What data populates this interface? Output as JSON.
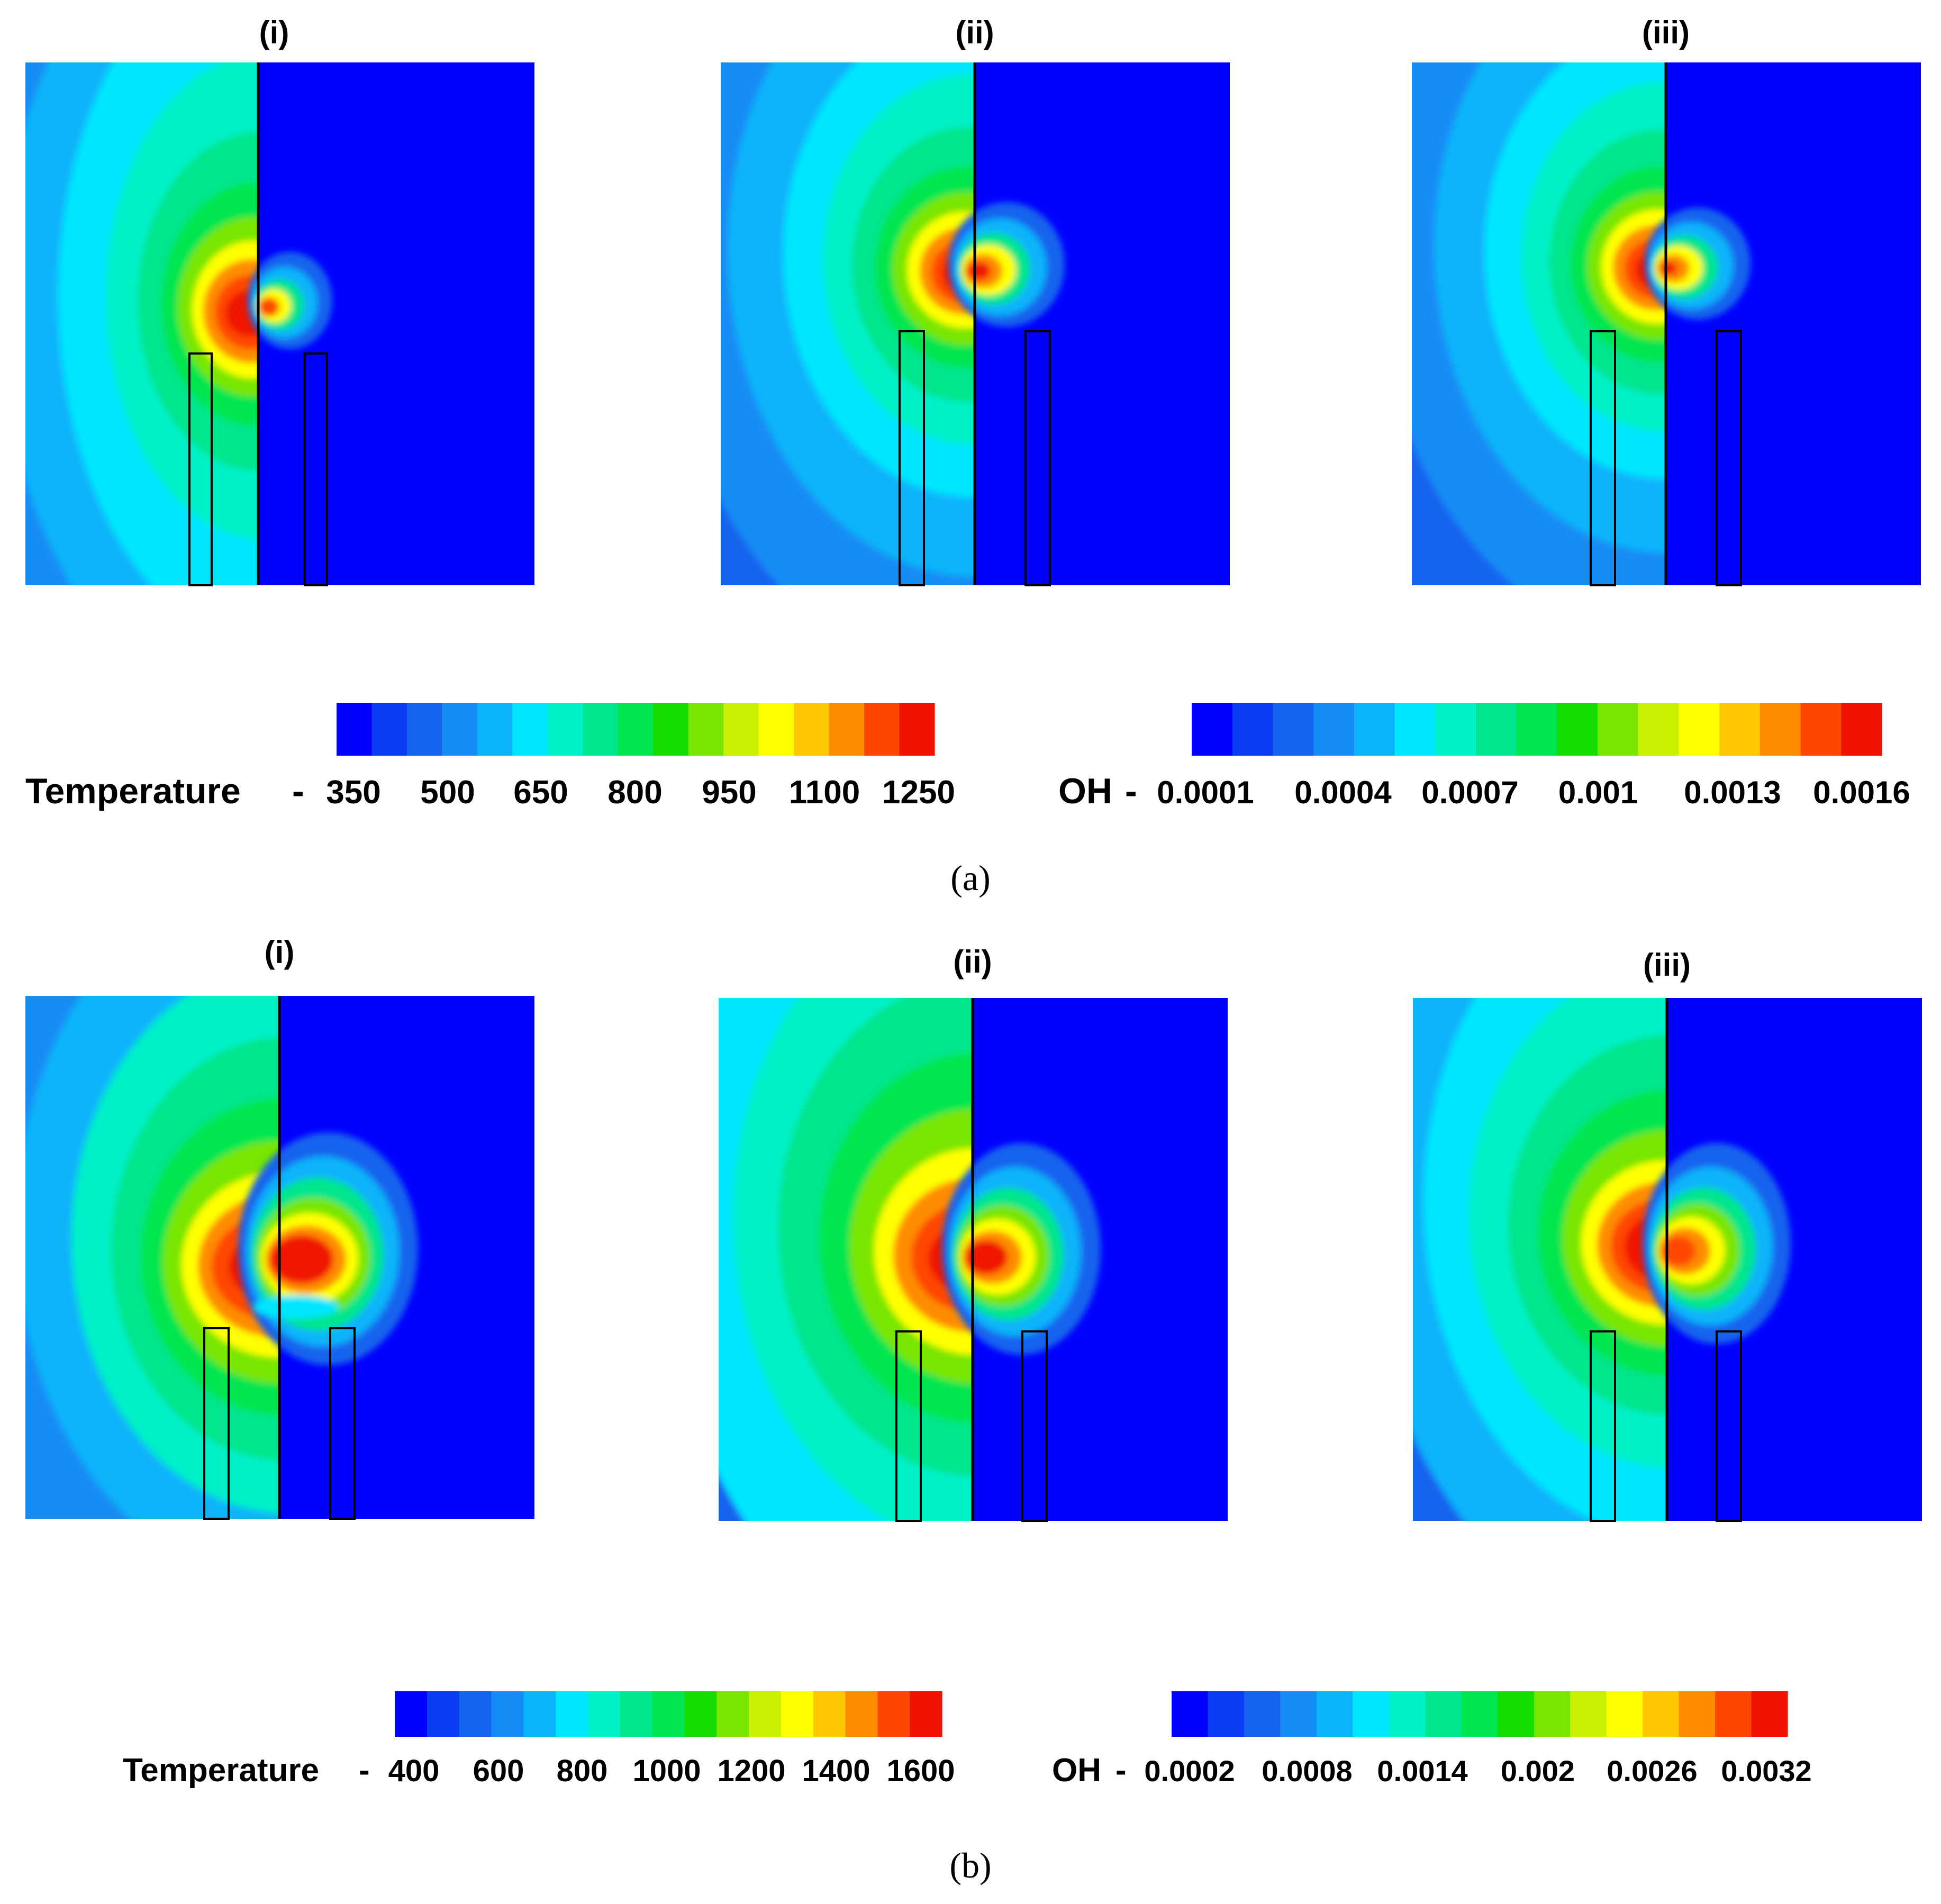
{
  "rows": [
    {
      "caption": "(a)",
      "panels": [
        {
          "label": "(i)"
        },
        {
          "label": "(ii)"
        },
        {
          "label": "(iii)"
        }
      ],
      "temperature_scale": {
        "title": "Temperature",
        "ticks": [
          "350",
          "500",
          "650",
          "800",
          "950",
          "1100",
          "1250"
        ]
      },
      "oh_scale": {
        "title": "OH",
        "ticks": [
          "0.0001",
          "0.0004",
          "0.0007",
          "0.001",
          "0.0013",
          "0.0016"
        ]
      }
    },
    {
      "caption": "(b)",
      "panels": [
        {
          "label": "(i)"
        },
        {
          "label": "(ii)"
        },
        {
          "label": "(iii)"
        }
      ],
      "temperature_scale": {
        "title": "Temperature",
        "ticks": [
          "400",
          "600",
          "800",
          "1000",
          "1200",
          "1400",
          "1600"
        ]
      },
      "oh_scale": {
        "title": "OH",
        "ticks": [
          "0.0002",
          "0.0008",
          "0.0014",
          "0.002",
          "0.0026",
          "0.0032"
        ]
      }
    }
  ],
  "colors": {
    "background_blue": "#0000ff",
    "contour_palette": [
      "#0000ff",
      "#0a3cf2",
      "#1464ee",
      "#148cf5",
      "#0ab4fa",
      "#00e6ff",
      "#00f0c8",
      "#00e68c",
      "#00e650",
      "#14dc00",
      "#78e600",
      "#c8f000",
      "#ffff00",
      "#ffc800",
      "#ff8c00",
      "#ff4600",
      "#f01400"
    ],
    "outline": "#000000"
  }
}
